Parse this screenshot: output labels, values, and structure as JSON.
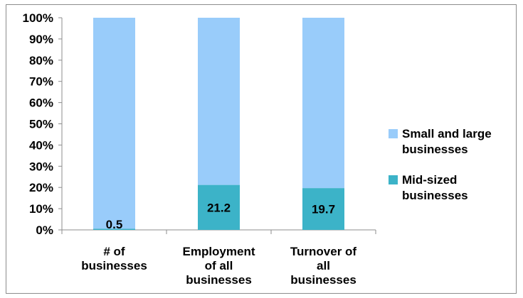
{
  "chart_data": {
    "type": "bar",
    "stacked": "percent",
    "categories": [
      [
        "# of",
        "businesses"
      ],
      [
        "Employment",
        "of all",
        "businesses"
      ],
      [
        "Turnover of",
        "all",
        "businesses"
      ]
    ],
    "series": [
      {
        "name": [
          "Mid-sized",
          "businesses"
        ],
        "values": [
          0.5,
          21.2,
          19.7
        ],
        "data_labels": [
          "0.5",
          "21.2",
          "19.7"
        ],
        "color": "#3cb3c8"
      },
      {
        "name": [
          "Small and large",
          "businesses"
        ],
        "values": [
          99.5,
          78.8,
          80.3
        ],
        "color": "#99ccfa"
      }
    ],
    "y_ticks": [
      "0%",
      "10%",
      "20%",
      "30%",
      "40%",
      "50%",
      "60%",
      "70%",
      "80%",
      "90%",
      "100%"
    ],
    "ylim": [
      0,
      100
    ],
    "grid": false,
    "legend_position": "right",
    "legend_order": [
      1,
      0
    ],
    "title": "",
    "xlabel": "",
    "ylabel": ""
  }
}
